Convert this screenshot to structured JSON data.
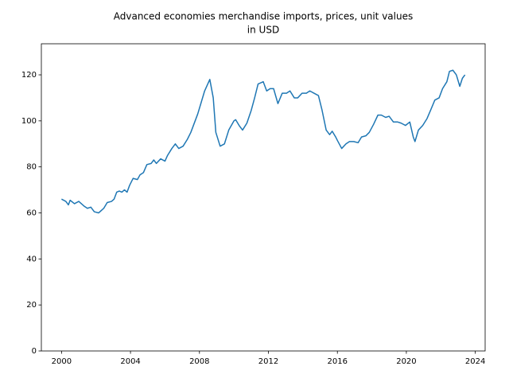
{
  "chart_data": {
    "type": "line",
    "title": [
      "Advanced economies merchandise imports, prices, unit values",
      "in USD"
    ],
    "x": [
      2000,
      2000.25,
      2000.4,
      2000.5,
      2000.75,
      2001.0,
      2001.3,
      2001.5,
      2001.7,
      2001.9,
      2002.15,
      2002.45,
      2002.65,
      2002.9,
      2003.05,
      2003.2,
      2003.35,
      2003.5,
      2003.65,
      2003.8,
      2003.95,
      2004.15,
      2004.4,
      2004.55,
      2004.75,
      2004.95,
      2005.2,
      2005.35,
      2005.5,
      2005.75,
      2006.0,
      2006.15,
      2006.4,
      2006.6,
      2006.8,
      2007.05,
      2007.3,
      2007.5,
      2007.9,
      2008.1,
      2008.3,
      2008.6,
      2008.8,
      2008.95,
      2009.2,
      2009.45,
      2009.7,
      2010.0,
      2010.1,
      2010.3,
      2010.5,
      2010.75,
      2011.0,
      2011.2,
      2011.4,
      2011.7,
      2011.9,
      2012.1,
      2012.3,
      2012.55,
      2012.8,
      2013.05,
      2013.25,
      2013.5,
      2013.7,
      2013.95,
      2014.2,
      2014.4,
      2014.65,
      2014.9,
      2015.1,
      2015.35,
      2015.55,
      2015.7,
      2015.9,
      2016.0,
      2016.25,
      2016.5,
      2016.7,
      2016.95,
      2017.2,
      2017.4,
      2017.65,
      2017.85,
      2018.1,
      2018.35,
      2018.55,
      2018.8,
      2019.0,
      2019.25,
      2019.5,
      2019.7,
      2019.95,
      2020.2,
      2020.4,
      2020.5,
      2020.7,
      2020.95,
      2021.2,
      2021.4,
      2021.65,
      2021.9,
      2022.1,
      2022.35,
      2022.5,
      2022.7,
      2022.9,
      2023.1,
      2023.25,
      2023.4
    ],
    "series": [
      {
        "color": "#1f77b4",
        "values": [
          66,
          65,
          63.5,
          65.5,
          64,
          65,
          63,
          62,
          62.5,
          60.5,
          60,
          62,
          64.5,
          65,
          66,
          69,
          69.5,
          69,
          70,
          69,
          72,
          75,
          74.5,
          76.5,
          77.5,
          81,
          81.5,
          83,
          81.5,
          83.5,
          82.5,
          85,
          88,
          90,
          88,
          89,
          92,
          95,
          103,
          108,
          113,
          118,
          110,
          95,
          89,
          90,
          96,
          100,
          100.5,
          98,
          96,
          99,
          104.5,
          110,
          116,
          117,
          113,
          114,
          114,
          107.5,
          112,
          112,
          113,
          110,
          110,
          112,
          112,
          113,
          112,
          111,
          105,
          96,
          94,
          95.5,
          93,
          91.5,
          88,
          90,
          91,
          91,
          90.5,
          93,
          93.5,
          95,
          98.5,
          102.5,
          102.5,
          101.5,
          102,
          99.5,
          99.5,
          99,
          98,
          99.5,
          93,
          91,
          96,
          98,
          101,
          104.5,
          109,
          110,
          114,
          117,
          121.5,
          122,
          120,
          115,
          118.5,
          120
        ]
      }
    ],
    "xlim": [
      1998.83,
      2024.57
    ],
    "xticks": [
      2000,
      2004,
      2008,
      2012,
      2016,
      2020,
      2024
    ],
    "ylim": [
      0,
      133.5
    ],
    "yticks": [
      0,
      20,
      40,
      60,
      80,
      100,
      120
    ]
  }
}
